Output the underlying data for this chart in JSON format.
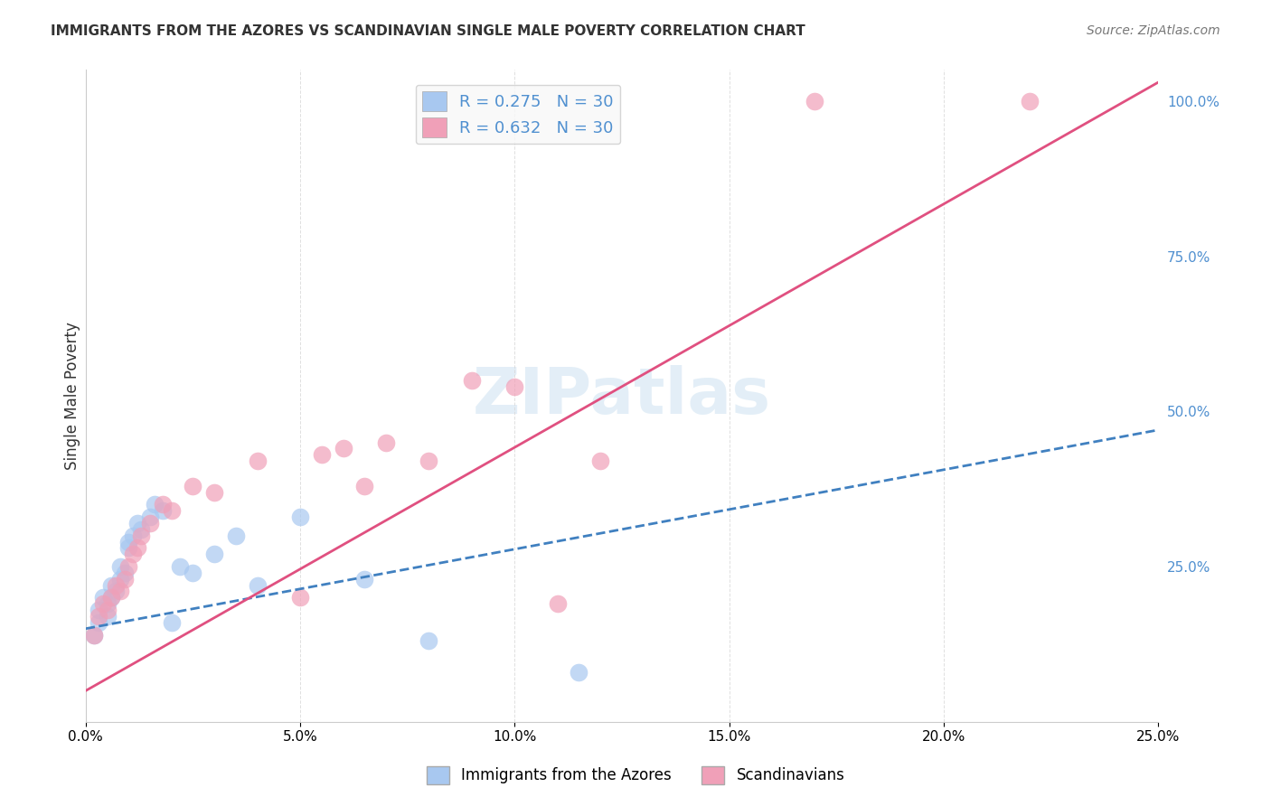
{
  "title": "IMMIGRANTS FROM THE AZORES VS SCANDINAVIAN SINGLE MALE POVERTY CORRELATION CHART",
  "source": "Source: ZipAtlas.com",
  "xlabel": "",
  "ylabel": "Single Male Poverty",
  "xlim": [
    0.0,
    0.25
  ],
  "ylim": [
    0.0,
    1.05
  ],
  "xtick_labels": [
    "0.0%",
    "5.0%",
    "10.0%",
    "15.0%",
    "20.0%",
    "25.0%"
  ],
  "xtick_vals": [
    0.0,
    0.05,
    0.1,
    0.15,
    0.2,
    0.25
  ],
  "ytick_right_labels": [
    "25.0%",
    "50.0%",
    "75.0%",
    "100.0%"
  ],
  "ytick_right_vals": [
    0.25,
    0.5,
    0.75,
    1.0
  ],
  "watermark": "ZIPatlas",
  "legend_line1": "R = 0.275   N = 30",
  "legend_line2": "R = 0.632   N = 30",
  "blue_color": "#a8c8f0",
  "pink_color": "#f0a0b8",
  "trend_blue": "#4080c0",
  "trend_pink": "#e05080",
  "blue_scatter": [
    [
      0.002,
      0.14
    ],
    [
      0.003,
      0.16
    ],
    [
      0.003,
      0.18
    ],
    [
      0.004,
      0.2
    ],
    [
      0.005,
      0.17
    ],
    [
      0.005,
      0.19
    ],
    [
      0.006,
      0.2
    ],
    [
      0.006,
      0.22
    ],
    [
      0.007,
      0.21
    ],
    [
      0.008,
      0.23
    ],
    [
      0.008,
      0.25
    ],
    [
      0.009,
      0.24
    ],
    [
      0.01,
      0.28
    ],
    [
      0.01,
      0.29
    ],
    [
      0.011,
      0.3
    ],
    [
      0.012,
      0.32
    ],
    [
      0.013,
      0.31
    ],
    [
      0.015,
      0.33
    ],
    [
      0.016,
      0.35
    ],
    [
      0.018,
      0.34
    ],
    [
      0.02,
      0.16
    ],
    [
      0.022,
      0.25
    ],
    [
      0.025,
      0.24
    ],
    [
      0.03,
      0.27
    ],
    [
      0.035,
      0.3
    ],
    [
      0.04,
      0.22
    ],
    [
      0.05,
      0.33
    ],
    [
      0.065,
      0.23
    ],
    [
      0.08,
      0.13
    ],
    [
      0.115,
      0.08
    ]
  ],
  "pink_scatter": [
    [
      0.002,
      0.14
    ],
    [
      0.003,
      0.17
    ],
    [
      0.004,
      0.19
    ],
    [
      0.005,
      0.18
    ],
    [
      0.006,
      0.2
    ],
    [
      0.007,
      0.22
    ],
    [
      0.008,
      0.21
    ],
    [
      0.009,
      0.23
    ],
    [
      0.01,
      0.25
    ],
    [
      0.011,
      0.27
    ],
    [
      0.012,
      0.28
    ],
    [
      0.013,
      0.3
    ],
    [
      0.015,
      0.32
    ],
    [
      0.018,
      0.35
    ],
    [
      0.02,
      0.34
    ],
    [
      0.025,
      0.38
    ],
    [
      0.03,
      0.37
    ],
    [
      0.04,
      0.42
    ],
    [
      0.05,
      0.2
    ],
    [
      0.055,
      0.43
    ],
    [
      0.06,
      0.44
    ],
    [
      0.065,
      0.38
    ],
    [
      0.07,
      0.45
    ],
    [
      0.08,
      0.42
    ],
    [
      0.09,
      0.55
    ],
    [
      0.1,
      0.54
    ],
    [
      0.11,
      0.19
    ],
    [
      0.12,
      0.42
    ],
    [
      0.17,
      1.0
    ],
    [
      0.22,
      1.0
    ]
  ],
  "blue_trend_x": [
    0.0,
    0.25
  ],
  "blue_trend_y": [
    0.15,
    0.47
  ],
  "pink_trend_x": [
    0.0,
    0.25
  ],
  "pink_trend_y": [
    0.05,
    1.03
  ],
  "background_color": "#ffffff",
  "grid_color": "#d8d8d8",
  "legend_box_color": "#f8f8f8",
  "right_axis_color": "#5090d0"
}
